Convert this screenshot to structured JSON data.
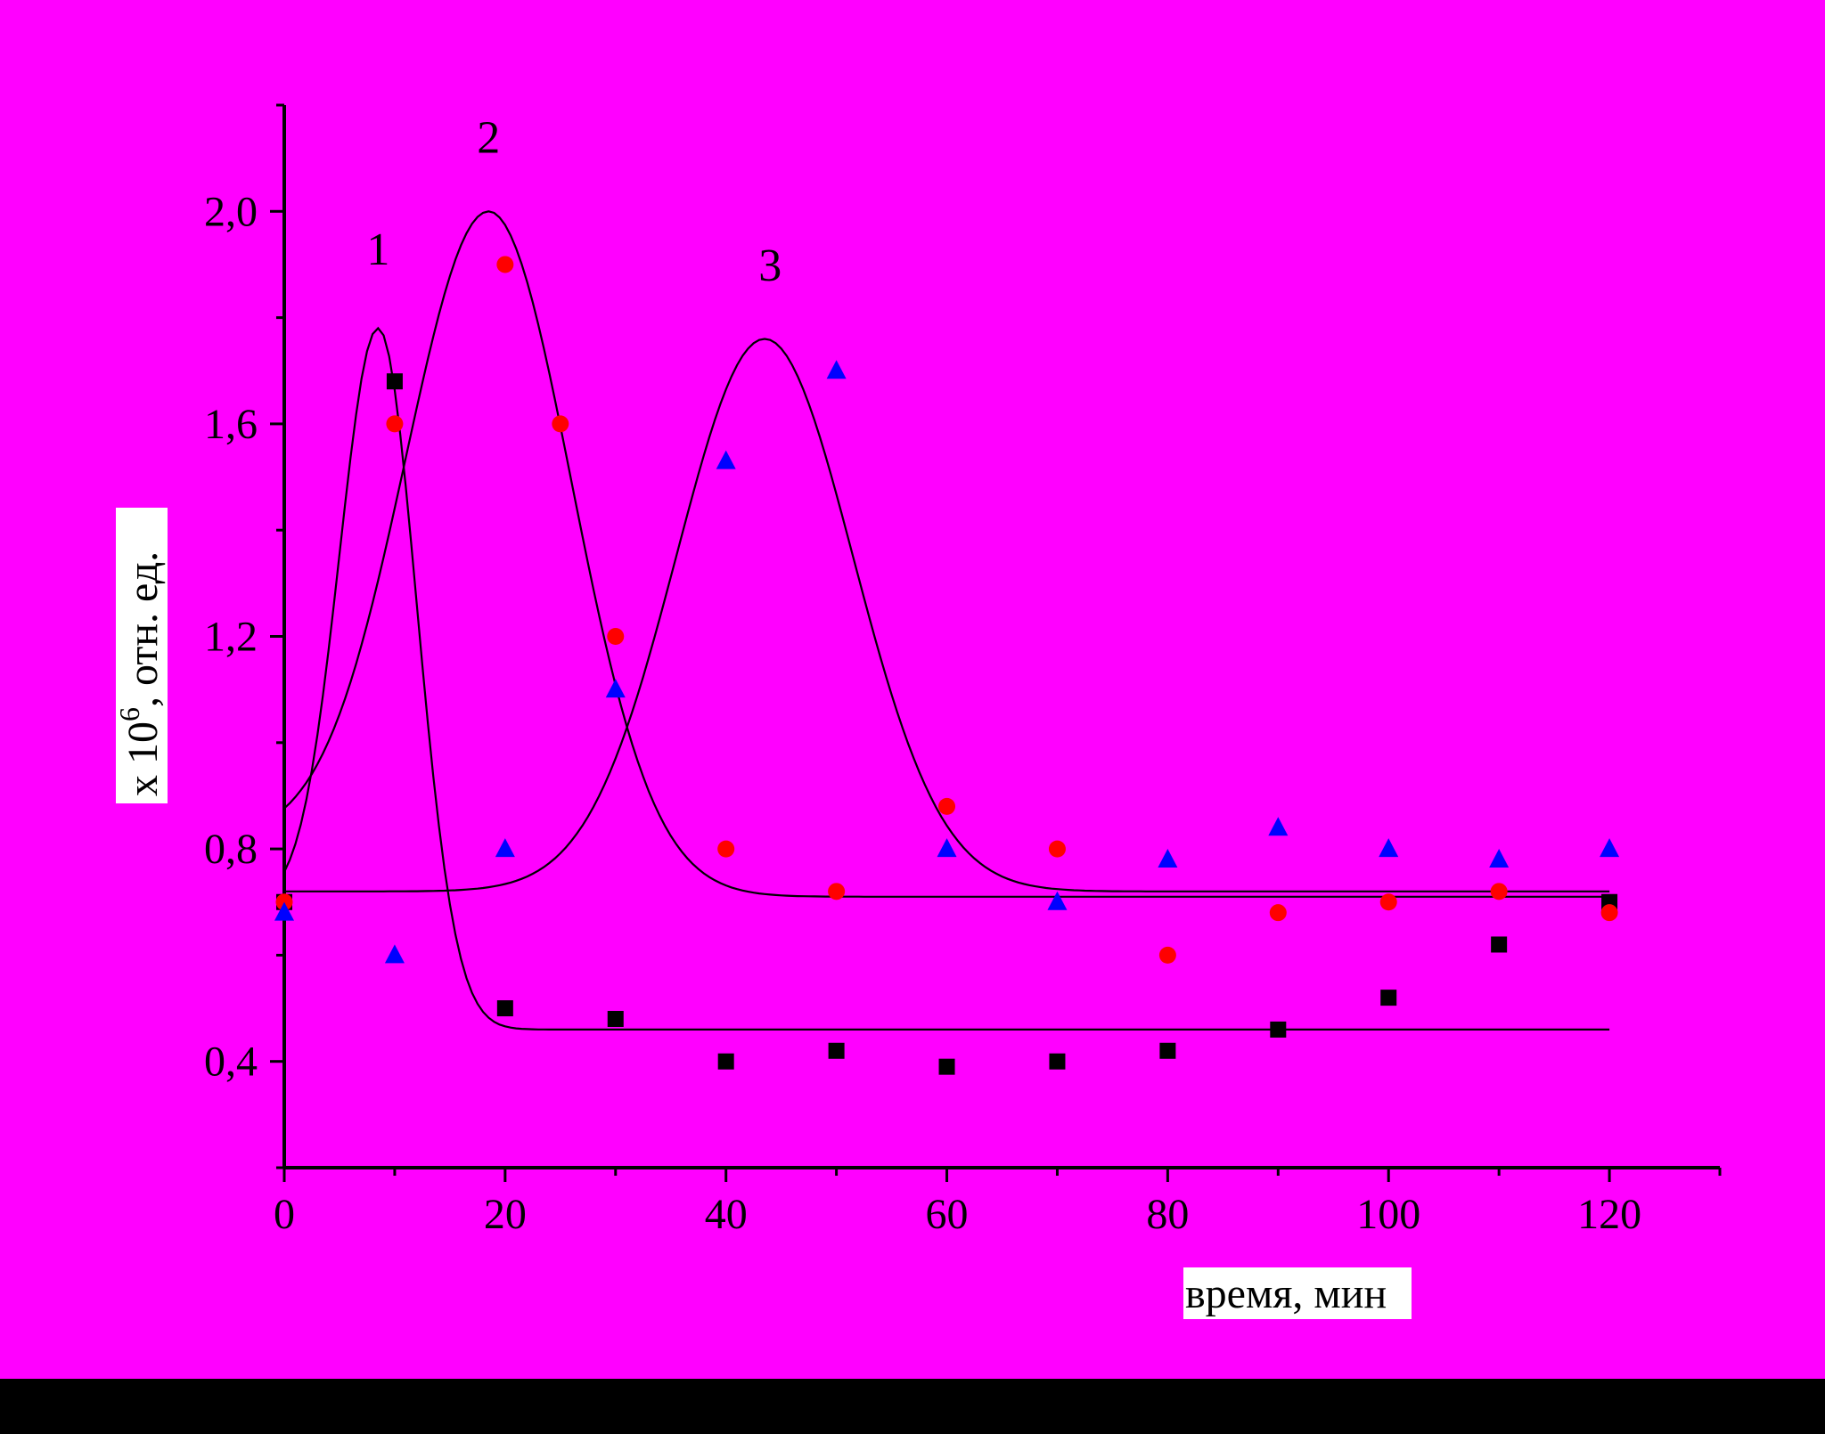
{
  "chart_data": {
    "type": "scatter",
    "title": "",
    "xlabel": "время, мин",
    "ylabel_main": "x 10",
    "ylabel_sup": "6",
    "ylabel_tail": ", отн. ед.",
    "xlim": [
      0,
      130
    ],
    "ylim": [
      0.2,
      2.2
    ],
    "x_ticks": [
      0,
      20,
      40,
      60,
      80,
      100,
      120
    ],
    "x_tick_labels": [
      "0",
      "20",
      "40",
      "60",
      "80",
      "100",
      "120"
    ],
    "y_ticks": [
      0.4,
      0.8,
      1.2,
      1.6,
      2.0
    ],
    "y_tick_labels": [
      "0,4",
      "0,8",
      "1,2",
      "1,6",
      "2,0"
    ],
    "grid": false,
    "legend": "none",
    "colors": {
      "background": "#ff00ff",
      "axes": "#000000",
      "curve": "#000000",
      "series_1": "#000000",
      "series_2": "#ff0000",
      "series_3": "#0000ff",
      "label_box": "#ffffff"
    },
    "series": [
      {
        "label": "1",
        "marker": "square",
        "points": [
          [
            0,
            0.7
          ],
          [
            10,
            1.68
          ],
          [
            20,
            0.5
          ],
          [
            30,
            0.48
          ],
          [
            40,
            0.4
          ],
          [
            50,
            0.42
          ],
          [
            60,
            0.39
          ],
          [
            70,
            0.4
          ],
          [
            80,
            0.42
          ],
          [
            90,
            0.46
          ],
          [
            100,
            0.52
          ],
          [
            110,
            0.62
          ],
          [
            120,
            0.7
          ]
        ],
        "fit": {
          "baseline": 0.46,
          "peak": 1.78,
          "center": 8.5,
          "width": 3.5,
          "start": 0.7
        },
        "label_pos": [
          8.5,
          1.9
        ]
      },
      {
        "label": "2",
        "marker": "circle",
        "points": [
          [
            0,
            0.7
          ],
          [
            10,
            1.6
          ],
          [
            20,
            1.9
          ],
          [
            25,
            1.6
          ],
          [
            30,
            1.2
          ],
          [
            40,
            0.8
          ],
          [
            50,
            0.72
          ],
          [
            60,
            0.88
          ],
          [
            70,
            0.8
          ],
          [
            80,
            0.6
          ],
          [
            90,
            0.68
          ],
          [
            100,
            0.7
          ],
          [
            110,
            0.72
          ],
          [
            120,
            0.68
          ]
        ],
        "fit": {
          "baseline": 0.71,
          "peak": 2.0,
          "center": 18.5,
          "width": 7.5,
          "start": 0.82
        },
        "label_pos": [
          18.5,
          2.11
        ]
      },
      {
        "label": "3",
        "marker": "triangle",
        "points": [
          [
            0,
            0.68
          ],
          [
            10,
            0.6
          ],
          [
            20,
            0.8
          ],
          [
            30,
            1.1
          ],
          [
            40,
            1.53
          ],
          [
            50,
            1.7
          ],
          [
            60,
            0.8
          ],
          [
            70,
            0.7
          ],
          [
            80,
            0.78
          ],
          [
            90,
            0.84
          ],
          [
            100,
            0.8
          ],
          [
            110,
            0.78
          ],
          [
            120,
            0.8
          ]
        ],
        "fit": {
          "baseline": 0.72,
          "peak": 1.76,
          "center": 43.5,
          "width": 8.0,
          "start": 0.72
        },
        "label_pos": [
          44,
          1.87
        ]
      }
    ]
  }
}
